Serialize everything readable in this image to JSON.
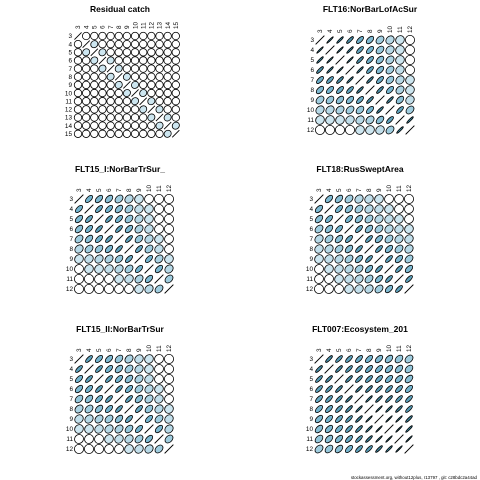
{
  "footer_text": "stockassessment.org, without12plus, r13797 , git: c28bdc2a44ad",
  "colors": {
    "low": "#e3f2f8",
    "mid": "#74b4ce",
    "high": "#0d5b74",
    "stroke": "#000000",
    "background": "#ffffff"
  },
  "chart_data": [
    {
      "type": "correlation-matrix",
      "title": "Residual catch",
      "tick_labels": [
        "3",
        "4",
        "5",
        "6",
        "7",
        "8",
        "9",
        "10",
        "11",
        "12",
        "13",
        "14",
        "15"
      ],
      "values": [
        [
          1,
          0,
          0,
          0,
          0,
          0,
          0,
          0,
          0,
          0,
          0,
          0,
          0
        ],
        [
          0,
          1,
          0.1,
          0,
          0,
          0,
          0,
          0,
          0,
          0,
          0,
          0,
          0
        ],
        [
          0,
          0.1,
          1,
          0.1,
          0,
          0,
          0,
          0,
          0,
          0,
          0,
          0,
          0
        ],
        [
          0,
          0,
          0.1,
          1,
          0.1,
          0,
          0,
          0,
          0,
          0,
          0,
          0,
          0
        ],
        [
          0,
          0,
          0,
          0.1,
          1,
          0.1,
          0,
          0,
          0,
          0,
          0,
          0,
          0
        ],
        [
          0,
          0,
          0,
          0,
          0.1,
          1,
          0.1,
          0,
          0,
          0,
          0,
          0,
          0
        ],
        [
          0,
          0,
          0,
          0,
          0,
          0.1,
          1,
          0.1,
          0,
          0,
          0,
          0,
          0
        ],
        [
          0,
          0,
          0,
          0,
          0,
          0,
          0.1,
          1,
          0.1,
          0,
          0,
          0,
          0
        ],
        [
          0,
          0,
          0,
          0,
          0,
          0,
          0,
          0.1,
          1,
          0.1,
          0,
          0,
          0
        ],
        [
          0,
          0,
          0,
          0,
          0,
          0,
          0,
          0,
          0.1,
          1,
          0.1,
          0,
          0
        ],
        [
          0,
          0,
          0,
          0,
          0,
          0,
          0,
          0,
          0,
          0.1,
          1,
          0.1,
          0
        ],
        [
          0,
          0,
          0,
          0,
          0,
          0,
          0,
          0,
          0,
          0,
          0.1,
          1,
          0.1
        ],
        [
          0,
          0,
          0,
          0,
          0,
          0,
          0,
          0,
          0,
          0,
          0,
          0.1,
          1
        ]
      ]
    },
    {
      "type": "correlation-matrix",
      "title": "FLT16:NorBarLofAcSur",
      "tick_labels": [
        "3",
        "4",
        "5",
        "6",
        "7",
        "8",
        "9",
        "10",
        "11",
        "12"
      ],
      "values": [
        [
          1,
          0.85,
          0.8,
          0.7,
          0.55,
          0.45,
          0.3,
          0.2,
          0.1,
          0
        ],
        [
          0.85,
          1,
          0.85,
          0.8,
          0.6,
          0.5,
          0.35,
          0.2,
          0.1,
          0
        ],
        [
          0.8,
          0.85,
          1,
          0.85,
          0.7,
          0.55,
          0.4,
          0.25,
          0.1,
          0
        ],
        [
          0.7,
          0.8,
          0.85,
          1,
          0.8,
          0.6,
          0.45,
          0.3,
          0.15,
          0
        ],
        [
          0.55,
          0.6,
          0.7,
          0.8,
          1,
          0.75,
          0.55,
          0.35,
          0.2,
          0.1
        ],
        [
          0.45,
          0.5,
          0.55,
          0.6,
          0.75,
          1,
          0.7,
          0.5,
          0.25,
          0.1
        ],
        [
          0.3,
          0.35,
          0.4,
          0.45,
          0.55,
          0.7,
          1,
          0.75,
          0.4,
          0.15
        ],
        [
          0.2,
          0.2,
          0.25,
          0.3,
          0.35,
          0.5,
          0.75,
          1,
          0.6,
          0.3
        ],
        [
          0.1,
          0.1,
          0.1,
          0.15,
          0.2,
          0.25,
          0.4,
          0.6,
          1,
          0.8
        ],
        [
          0,
          0,
          0,
          0,
          0.1,
          0.1,
          0.15,
          0.3,
          0.8,
          1
        ]
      ]
    },
    {
      "type": "correlation-matrix",
      "title": "FLT15_I:NorBarTrSur_",
      "tick_labels": [
        "3",
        "4",
        "5",
        "6",
        "7",
        "8",
        "9",
        "10",
        "11",
        "12"
      ],
      "values": [
        [
          1,
          0.5,
          0.45,
          0.4,
          0.3,
          0.2,
          0.1,
          0.05,
          0,
          0
        ],
        [
          0.5,
          1,
          0.55,
          0.5,
          0.4,
          0.3,
          0.15,
          0.1,
          0,
          0
        ],
        [
          0.45,
          0.55,
          1,
          0.6,
          0.5,
          0.35,
          0.2,
          0.1,
          0.05,
          0
        ],
        [
          0.4,
          0.5,
          0.6,
          1,
          0.6,
          0.45,
          0.25,
          0.15,
          0.05,
          0
        ],
        [
          0.3,
          0.4,
          0.5,
          0.6,
          1,
          0.6,
          0.35,
          0.2,
          0.1,
          0.05
        ],
        [
          0.2,
          0.3,
          0.35,
          0.45,
          0.6,
          1,
          0.55,
          0.3,
          0.15,
          0.05
        ],
        [
          0.1,
          0.15,
          0.2,
          0.25,
          0.35,
          0.55,
          1,
          0.5,
          0.25,
          0.1
        ],
        [
          0.05,
          0.1,
          0.1,
          0.15,
          0.2,
          0.3,
          0.5,
          1,
          0.45,
          0.2
        ],
        [
          0,
          0,
          0.05,
          0.05,
          0.1,
          0.15,
          0.25,
          0.45,
          1,
          0.3
        ],
        [
          0,
          0,
          0,
          0,
          0.05,
          0.05,
          0.1,
          0.2,
          0.3,
          1
        ]
      ]
    },
    {
      "type": "correlation-matrix",
      "title": "FLT18:RusSweptArea",
      "tick_labels": [
        "3",
        "4",
        "5",
        "6",
        "7",
        "8",
        "9",
        "10",
        "11",
        "12"
      ],
      "values": [
        [
          1,
          0.45,
          0.4,
          0.3,
          0.2,
          0.15,
          0.1,
          0.05,
          0.05,
          0
        ],
        [
          0.45,
          1,
          0.5,
          0.4,
          0.3,
          0.2,
          0.15,
          0.1,
          0.05,
          0.05
        ],
        [
          0.4,
          0.5,
          1,
          0.5,
          0.4,
          0.3,
          0.2,
          0.15,
          0.1,
          0.05
        ],
        [
          0.3,
          0.4,
          0.5,
          1,
          0.55,
          0.4,
          0.3,
          0.2,
          0.15,
          0.1
        ],
        [
          0.2,
          0.3,
          0.4,
          0.55,
          1,
          0.6,
          0.45,
          0.3,
          0.2,
          0.15
        ],
        [
          0.15,
          0.2,
          0.3,
          0.4,
          0.6,
          1,
          0.6,
          0.45,
          0.3,
          0.2
        ],
        [
          0.1,
          0.15,
          0.2,
          0.3,
          0.45,
          0.6,
          1,
          0.6,
          0.45,
          0.3
        ],
        [
          0.05,
          0.1,
          0.15,
          0.2,
          0.3,
          0.45,
          0.6,
          1,
          0.6,
          0.45
        ],
        [
          0.05,
          0.05,
          0.1,
          0.15,
          0.2,
          0.3,
          0.45,
          0.6,
          1,
          0.6
        ],
        [
          0,
          0.05,
          0.05,
          0.1,
          0.15,
          0.2,
          0.3,
          0.45,
          0.6,
          1
        ]
      ]
    },
    {
      "type": "correlation-matrix",
      "title": "FLT15_II:NorBarTrSur",
      "tick_labels": [
        "3",
        "4",
        "5",
        "6",
        "7",
        "8",
        "9",
        "10",
        "11",
        "12"
      ],
      "values": [
        [
          1,
          0.6,
          0.5,
          0.45,
          0.35,
          0.25,
          0.15,
          0.1,
          0.05,
          0
        ],
        [
          0.6,
          1,
          0.6,
          0.5,
          0.4,
          0.3,
          0.2,
          0.1,
          0.05,
          0
        ],
        [
          0.5,
          0.6,
          1,
          0.6,
          0.5,
          0.4,
          0.25,
          0.15,
          0.05,
          0
        ],
        [
          0.45,
          0.5,
          0.6,
          1,
          0.6,
          0.5,
          0.3,
          0.2,
          0.1,
          0.05
        ],
        [
          0.35,
          0.4,
          0.5,
          0.6,
          1,
          0.6,
          0.4,
          0.25,
          0.15,
          0.05
        ],
        [
          0.25,
          0.3,
          0.4,
          0.5,
          0.6,
          1,
          0.55,
          0.35,
          0.2,
          0.1
        ],
        [
          0.15,
          0.2,
          0.25,
          0.3,
          0.4,
          0.55,
          1,
          0.5,
          0.3,
          0.15
        ],
        [
          0.1,
          0.1,
          0.15,
          0.2,
          0.25,
          0.35,
          0.5,
          1,
          0.45,
          0.2
        ],
        [
          0.05,
          0.05,
          0.05,
          0.1,
          0.15,
          0.2,
          0.3,
          0.45,
          1,
          0.3
        ],
        [
          0,
          0,
          0,
          0.05,
          0.05,
          0.1,
          0.15,
          0.2,
          0.3,
          1
        ]
      ]
    },
    {
      "type": "correlation-matrix",
      "title": "FLT007:Ecosystem_201",
      "tick_labels": [
        "3",
        "4",
        "5",
        "6",
        "7",
        "8",
        "9",
        "10",
        "11",
        "12"
      ],
      "values": [
        [
          1,
          0.7,
          0.65,
          0.6,
          0.55,
          0.5,
          0.45,
          0.4,
          0.35,
          0.3
        ],
        [
          0.7,
          1,
          0.7,
          0.65,
          0.6,
          0.55,
          0.5,
          0.45,
          0.4,
          0.35
        ],
        [
          0.65,
          0.7,
          1,
          0.7,
          0.65,
          0.6,
          0.55,
          0.5,
          0.45,
          0.4
        ],
        [
          0.6,
          0.65,
          0.7,
          1,
          0.75,
          0.7,
          0.65,
          0.6,
          0.55,
          0.5
        ],
        [
          0.55,
          0.6,
          0.65,
          0.75,
          1,
          0.8,
          0.75,
          0.7,
          0.65,
          0.6
        ],
        [
          0.5,
          0.55,
          0.6,
          0.7,
          0.8,
          1,
          0.85,
          0.8,
          0.75,
          0.65
        ],
        [
          0.45,
          0.5,
          0.55,
          0.65,
          0.75,
          0.85,
          1,
          0.9,
          0.85,
          0.75
        ],
        [
          0.4,
          0.45,
          0.5,
          0.6,
          0.7,
          0.8,
          0.9,
          1,
          0.9,
          0.8
        ],
        [
          0.35,
          0.4,
          0.45,
          0.55,
          0.65,
          0.75,
          0.85,
          0.9,
          1,
          0.9
        ],
        [
          0.3,
          0.35,
          0.4,
          0.5,
          0.6,
          0.65,
          0.75,
          0.8,
          0.9,
          1
        ]
      ]
    }
  ]
}
